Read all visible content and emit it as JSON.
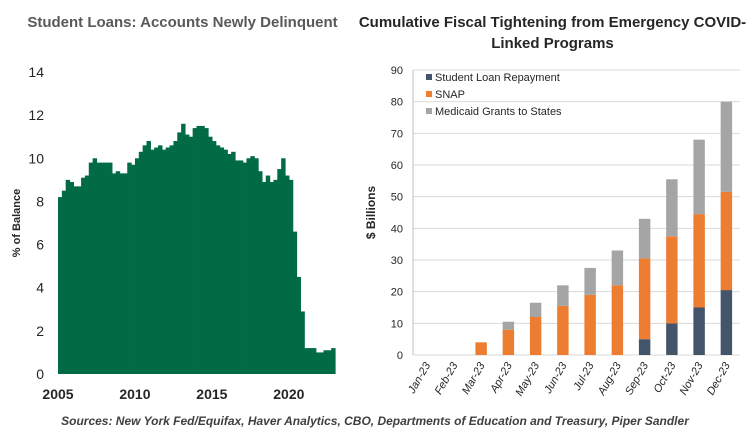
{
  "source": "Sources: New York Fed/Equifax, Haver Analytics, CBO, Departments of Education and Treasury, Piper Sandler",
  "colors": {
    "area": "#006b45",
    "student_loan": "#44546a",
    "snap": "#ed7d31",
    "medicaid": "#a5a5a5",
    "grid": "#d9d9d9"
  },
  "chart_data": [
    {
      "type": "bar",
      "title": "Student Loans: Accounts Newly Delinquent",
      "ylabel": "% of Balance",
      "xlabel": "",
      "ylim": [
        0,
        14
      ],
      "yticks": [
        0,
        2,
        4,
        6,
        8,
        10,
        12,
        14
      ],
      "xlim": [
        2005,
        2023
      ],
      "xticks": [
        2005,
        2010,
        2015,
        2020
      ],
      "grid": false,
      "series": [
        {
          "x": [
            2005.0,
            2005.25,
            2005.5,
            2005.75,
            2006.0,
            2006.25,
            2006.5,
            2006.75,
            2007.0,
            2007.25,
            2007.5,
            2007.75,
            2008.0,
            2008.25,
            2008.5,
            2008.75,
            2009.0,
            2009.25,
            2009.5,
            2009.75,
            2010.0,
            2010.25,
            2010.5,
            2010.75,
            2011.0,
            2011.25,
            2011.5,
            2011.75,
            2012.0,
            2012.25,
            2012.5,
            2012.75,
            2013.0,
            2013.25,
            2013.5,
            2013.75,
            2014.0,
            2014.25,
            2014.5,
            2014.75,
            2015.0,
            2015.25,
            2015.5,
            2015.75,
            2016.0,
            2016.25,
            2016.5,
            2016.75,
            2017.0,
            2017.25,
            2017.5,
            2017.75,
            2018.0,
            2018.25,
            2018.5,
            2018.75,
            2019.0,
            2019.25,
            2019.5,
            2019.75,
            2020.0,
            2020.25,
            2020.5,
            2020.75,
            2021.0,
            2021.25,
            2021.5,
            2021.75,
            2022.0,
            2022.25,
            2022.5,
            2022.75
          ],
          "values": [
            8.2,
            8.5,
            9.0,
            8.9,
            8.7,
            8.7,
            9.1,
            9.2,
            9.8,
            10.0,
            9.8,
            9.8,
            9.8,
            9.8,
            9.3,
            9.4,
            9.3,
            9.3,
            9.8,
            9.7,
            10.0,
            10.3,
            10.6,
            10.8,
            10.4,
            10.5,
            10.6,
            10.4,
            10.5,
            10.6,
            10.8,
            11.2,
            11.6,
            11.1,
            11.0,
            11.4,
            11.5,
            11.5,
            11.4,
            11.0,
            10.8,
            10.6,
            10.5,
            10.4,
            10.2,
            10.3,
            9.9,
            9.9,
            9.8,
            10.0,
            10.1,
            10.0,
            9.4,
            8.9,
            9.2,
            8.9,
            9.0,
            9.5,
            10.0,
            9.2,
            9.0,
            6.6,
            4.5,
            2.9,
            1.2,
            1.2,
            1.2,
            1.0,
            1.0,
            1.1,
            1.1,
            1.2
          ]
        }
      ]
    },
    {
      "type": "bar",
      "stacked": true,
      "title": "Cumulative Fiscal Tightening from Emergency COVID-Linked Programs",
      "ylabel": "$ Billions",
      "xlabel": "",
      "ylim": [
        0,
        90
      ],
      "yticks": [
        0,
        10,
        20,
        30,
        40,
        50,
        60,
        70,
        80,
        90
      ],
      "grid": true,
      "legend": "top-left",
      "categories": [
        "Jan-23",
        "Feb-23",
        "Mar-23",
        "Apr-23",
        "May-23",
        "Jun-23",
        "Jul-23",
        "Aug-23",
        "Sep-23",
        "Oct-23",
        "Nov-23",
        "Dec-23"
      ],
      "series": [
        {
          "name": "Student Loan Repayment",
          "values": [
            0,
            0,
            0,
            0,
            0,
            0,
            0,
            0,
            5,
            10,
            15,
            20.5
          ]
        },
        {
          "name": "SNAP",
          "values": [
            0,
            0,
            4,
            8,
            12,
            15.5,
            19,
            22,
            25.5,
            27.5,
            29.5,
            31
          ]
        },
        {
          "name": "Medicaid Grants to States",
          "values": [
            0,
            0,
            0,
            2.5,
            4.5,
            6.5,
            8.5,
            11,
            12.5,
            18,
            23.5,
            28.5
          ]
        }
      ]
    }
  ]
}
